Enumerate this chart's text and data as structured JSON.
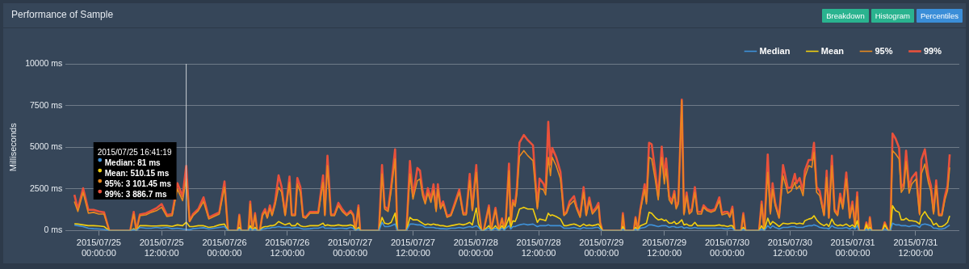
{
  "chart_data": {
    "type": "line",
    "title": "Performance of Sample",
    "ylabel": "Milliseconds",
    "annotations": [
      "Breakdown",
      "Histogram",
      "Percentiles",
      "2015/07/25 16:41:19",
      "Median: 81 ms",
      "Mean: 510.15 ms",
      "95%: 3 101.45 ms",
      "99%: 3 886.7 ms"
    ],
    "ref_lines": [
      {
        "axis": "x",
        "value": "2015-07-25T16:41:19",
        "color": "#c8cdd3"
      }
    ],
    "legend": "top right",
    "grid": "y",
    "xlim": [
      "2015-07-24T17:40",
      "2015-07-31T20:20"
    ],
    "xticks": [
      {
        "value": "2015-07-25T00:00",
        "label": "2015/07/25 00:00:00"
      },
      {
        "value": "2015-07-25T12:00",
        "label": "2015/07/25 12:00:00"
      },
      {
        "value": "2015-07-26T00:00",
        "label": "2015/07/26 00:00:00"
      },
      {
        "value": "2015-07-26T12:00",
        "label": "2015/07/26 12:00:00"
      },
      {
        "value": "2015-07-27T00:00",
        "label": "2015/07/27 00:00:00"
      },
      {
        "value": "2015-07-27T12:00",
        "label": "2015/07/27 12:00:00"
      },
      {
        "value": "2015-07-28T00:00",
        "label": "2015/07/28 00:00:00"
      },
      {
        "value": "2015-07-28T12:00",
        "label": "2015/07/28 12:00:00"
      },
      {
        "value": "2015-07-29T00:00",
        "label": "2015/07/29 00:00:00"
      },
      {
        "value": "2015-07-29T12:00",
        "label": "2015/07/29 12:00:00"
      },
      {
        "value": "2015-07-30T00:00",
        "label": "2015/07/30 00:00:00"
      },
      {
        "value": "2015-07-30T12:00",
        "label": "2015/07/30 12:00:00"
      },
      {
        "value": "2015-07-31T00:00",
        "label": "2015/07/31 00:00:00"
      },
      {
        "value": "2015-07-31T12:00",
        "label": "2015/07/31 12:00:00"
      }
    ],
    "ylim": [
      0,
      10000
    ],
    "yticks": [
      {
        "value": 0,
        "label": "0 ms"
      },
      {
        "value": 2500,
        "label": "2500 ms"
      },
      {
        "value": 5000,
        "label": "5000 ms"
      },
      {
        "value": 7500,
        "label": "7500 ms"
      },
      {
        "value": 10000,
        "label": "10000 ms"
      }
    ],
    "x": [
      "2015-07-24T19:20",
      "2015-07-24T20:00",
      "2015-07-24T21:00",
      "2015-07-24T22:00",
      "2015-07-24T23:00",
      "2015-07-25T00:00",
      "2015-07-25T01:00",
      "2015-07-25T02:00",
      "2015-07-25T06:00",
      "2015-07-25T06:40",
      "2015-07-25T07:10",
      "2015-07-25T07:50",
      "2015-07-25T09:00",
      "2015-07-25T10:00",
      "2015-07-25T11:00",
      "2015-07-25T12:00",
      "2015-07-25T13:00",
      "2015-07-25T14:00",
      "2015-07-25T15:00",
      "2015-07-25T16:00",
      "2015-07-25T16:41:19",
      "2015-07-25T17:20",
      "2015-07-25T18:00",
      "2015-07-25T19:00",
      "2015-07-25T20:00",
      "2015-07-25T21:00",
      "2015-07-25T22:00",
      "2015-07-25T23:00",
      "2015-07-26T00:00",
      "2015-07-26T00:40",
      "2015-07-26T02:30",
      "2015-07-26T02:50",
      "2015-07-26T03:10",
      "2015-07-26T04:35",
      "2015-07-26T04:55",
      "2015-07-26T05:20",
      "2015-07-26T05:50",
      "2015-07-26T06:15",
      "2015-07-26T06:45",
      "2015-07-26T07:15",
      "2015-07-26T07:45",
      "2015-07-26T08:10",
      "2015-07-26T08:40",
      "2015-07-26T09:05",
      "2015-07-26T09:40",
      "2015-07-26T10:20",
      "2015-07-26T10:55",
      "2015-07-26T11:35",
      "2015-07-26T12:25",
      "2015-07-26T12:50",
      "2015-07-26T13:30",
      "2015-07-26T13:55",
      "2015-07-26T14:30",
      "2015-07-26T15:00",
      "2015-07-26T15:30",
      "2015-07-26T16:20",
      "2015-07-26T17:05",
      "2015-07-26T17:55",
      "2015-07-26T18:50",
      "2015-07-26T19:10",
      "2015-07-26T19:40",
      "2015-07-26T20:20",
      "2015-07-26T21:00",
      "2015-07-26T21:45",
      "2015-07-26T22:30",
      "2015-07-26T23:20",
      "2015-07-27T00:05",
      "2015-07-27T00:35",
      "2015-07-27T01:00",
      "2015-07-27T01:35",
      "2015-07-27T01:55",
      "2015-07-27T05:30",
      "2015-07-27T06:05",
      "2015-07-27T06:35",
      "2015-07-27T07:15",
      "2015-07-27T07:50",
      "2015-07-27T08:35",
      "2015-07-27T09:00",
      "2015-07-27T10:45",
      "2015-07-27T11:25",
      "2015-07-27T12:00",
      "2015-07-27T12:50",
      "2015-07-27T13:20",
      "2015-07-27T13:50",
      "2015-07-27T14:20",
      "2015-07-27T14:50",
      "2015-07-27T15:25",
      "2015-07-27T15:55",
      "2015-07-27T16:25",
      "2015-07-27T16:45",
      "2015-07-27T17:15",
      "2015-07-27T17:45",
      "2015-07-27T18:30",
      "2015-07-27T19:15",
      "2015-07-27T20:05",
      "2015-07-27T20:50",
      "2015-07-27T21:35",
      "2015-07-27T22:10",
      "2015-07-27T22:50",
      "2015-07-27T23:20",
      "2015-07-28T00:05",
      "2015-07-28T00:30",
      "2015-07-28T01:05",
      "2015-07-28T01:30",
      "2015-07-28T02:30",
      "2015-07-28T02:55",
      "2015-07-28T03:45",
      "2015-07-28T04:25",
      "2015-07-28T05:00",
      "2015-07-28T05:25",
      "2015-07-28T05:45",
      "2015-07-28T06:20",
      "2015-07-28T06:40",
      "2015-07-28T07:05",
      "2015-07-28T07:30",
      "2015-07-28T07:50",
      "2015-07-28T08:20",
      "2015-07-28T09:10",
      "2015-07-28T09:55",
      "2015-07-28T10:55",
      "2015-07-28T11:45",
      "2015-07-28T12:10",
      "2015-07-28T12:55",
      "2015-07-28T13:20",
      "2015-07-28T13:50",
      "2015-07-28T14:15",
      "2015-07-28T14:35",
      "2015-07-28T15:20",
      "2015-07-28T16:10",
      "2015-07-28T16:50",
      "2015-07-28T17:20",
      "2015-07-28T17:55",
      "2015-07-28T18:45",
      "2015-07-28T19:15",
      "2015-07-28T19:55",
      "2015-07-28T20:35",
      "2015-07-28T21:05",
      "2015-07-28T21:40",
      "2015-07-28T22:15",
      "2015-07-28T22:55",
      "2015-07-28T23:25",
      "2015-07-28T23:45",
      "2015-07-29T00:10",
      "2015-07-29T03:50",
      "2015-07-29T04:05",
      "2015-07-29T04:25",
      "2015-07-29T06:10",
      "2015-07-29T06:30",
      "2015-07-29T06:55",
      "2015-07-29T07:25",
      "2015-07-29T08:15",
      "2015-07-29T08:35",
      "2015-07-29T09:05",
      "2015-07-29T09:35",
      "2015-07-29T10:15",
      "2015-07-29T10:50",
      "2015-07-29T11:30",
      "2015-07-29T12:00",
      "2015-07-29T12:20",
      "2015-07-29T12:55",
      "2015-07-29T13:25",
      "2015-07-29T13:55",
      "2015-07-29T14:15",
      "2015-07-29T14:40",
      "2015-07-29T15:20",
      "2015-07-29T15:45",
      "2015-07-29T16:15",
      "2015-07-29T16:45",
      "2015-07-29T17:15",
      "2015-07-29T17:50",
      "2015-07-29T18:20",
      "2015-07-29T19:05",
      "2015-07-29T19:30",
      "2015-07-29T20:10",
      "2015-07-29T20:55",
      "2015-07-29T21:40",
      "2015-07-29T22:30",
      "2015-07-29T23:00",
      "2015-07-29T23:30",
      "2015-07-30T00:05",
      "2015-07-30T00:30",
      "2015-07-30T01:00",
      "2015-07-30T01:25",
      "2015-07-30T02:40",
      "2015-07-30T03:05",
      "2015-07-30T03:30",
      "2015-07-30T06:05",
      "2015-07-30T06:35",
      "2015-07-30T07:05",
      "2015-07-30T07:45",
      "2015-07-30T08:15",
      "2015-07-30T08:40",
      "2015-07-30T09:10",
      "2015-07-30T09:55",
      "2015-07-30T10:40",
      "2015-07-30T11:35",
      "2015-07-30T12:15",
      "2015-07-30T12:55",
      "2015-07-30T13:15",
      "2015-07-30T13:50",
      "2015-07-30T14:30",
      "2015-07-30T14:50",
      "2015-07-30T15:35",
      "2015-07-30T16:10",
      "2015-07-30T16:35",
      "2015-07-30T17:05",
      "2015-07-30T17:40",
      "2015-07-30T18:30",
      "2015-07-30T19:00",
      "2015-07-30T19:25",
      "2015-07-30T20:00",
      "2015-07-30T20:30",
      "2015-07-30T21:05",
      "2015-07-30T21:35",
      "2015-07-30T22:05",
      "2015-07-30T22:45",
      "2015-07-30T23:25",
      "2015-07-30T23:55",
      "2015-07-31T00:25",
      "2015-07-31T00:50",
      "2015-07-31T01:10",
      "2015-07-31T02:15",
      "2015-07-31T02:35",
      "2015-07-31T03:00",
      "2015-07-31T03:15",
      "2015-07-31T03:35",
      "2015-07-31T05:40",
      "2015-07-31T06:05",
      "2015-07-31T06:45",
      "2015-07-31T07:10",
      "2015-07-31T07:35",
      "2015-07-31T08:10",
      "2015-07-31T08:50",
      "2015-07-31T09:15",
      "2015-07-31T09:45",
      "2015-07-31T10:10",
      "2015-07-31T10:45",
      "2015-07-31T11:15",
      "2015-07-31T12:05",
      "2015-07-31T12:45",
      "2015-07-31T13:05",
      "2015-07-31T13:45",
      "2015-07-31T14:25",
      "2015-07-31T14:55",
      "2015-07-31T15:25",
      "2015-07-31T15:55",
      "2015-07-31T16:25",
      "2015-07-31T17:00",
      "2015-07-31T17:35",
      "2015-07-31T18:05",
      "2015-07-31T18:30"
    ],
    "series": [
      {
        "name": "Median",
        "color": "#3f91d8",
        "values": [
          330,
          300,
          250,
          150,
          120,
          100,
          80,
          0,
          0,
          60,
          0,
          200,
          150,
          150,
          200,
          150,
          200,
          120,
          150,
          100,
          81,
          60,
          120,
          150,
          180,
          100,
          150,
          200,
          250,
          0,
          0,
          100,
          0,
          0,
          150,
          0,
          100,
          0,
          0,
          100,
          120,
          150,
          150,
          200,
          200,
          250,
          200,
          200,
          200,
          150,
          180,
          200,
          150,
          100,
          100,
          120,
          150,
          150,
          250,
          150,
          150,
          150,
          120,
          150,
          150,
          120,
          200,
          150,
          0,
          100,
          0,
          0,
          500,
          250,
          250,
          300,
          400,
          0,
          0,
          400,
          400,
          350,
          350,
          300,
          200,
          200,
          200,
          200,
          150,
          150,
          120,
          120,
          100,
          150,
          150,
          200,
          150,
          200,
          250,
          200,
          300,
          200,
          0,
          0,
          150,
          0,
          150,
          0,
          150,
          30,
          150,
          300,
          100,
          250,
          250,
          300,
          350,
          400,
          350,
          400,
          250,
          300,
          300,
          300,
          350,
          300,
          300,
          300,
          300,
          150,
          150,
          150,
          200,
          150,
          100,
          200,
          150,
          150,
          150,
          200,
          200,
          100,
          0,
          0,
          100,
          0,
          0,
          100,
          0,
          150,
          200,
          250,
          350,
          350,
          300,
          250,
          300,
          300,
          300,
          200,
          250,
          250,
          200,
          200,
          250,
          150,
          200,
          150,
          150,
          200,
          150,
          150,
          150,
          150,
          150,
          150,
          150,
          150,
          120,
          100,
          150,
          150,
          0,
          0,
          100,
          0,
          0,
          100,
          0,
          300,
          150,
          300,
          200,
          100,
          200,
          200,
          250,
          250,
          200,
          200,
          200,
          250,
          300,
          300,
          350,
          300,
          200,
          150,
          150,
          100,
          300,
          200,
          150,
          150,
          150,
          200,
          100,
          200,
          100,
          300,
          0,
          0,
          100,
          0,
          100,
          0,
          0,
          100,
          0,
          0,
          450,
          350,
          350,
          300,
          300,
          300,
          250,
          300,
          300,
          200,
          350,
          400,
          350,
          300,
          150,
          150,
          100,
          100,
          150,
          250,
          340
        ]
      },
      {
        "name": "Mean",
        "color": "#f2cf0f",
        "values": [
          420,
          400,
          350,
          300,
          300,
          280,
          250,
          0,
          0,
          120,
          0,
          300,
          300,
          280,
          280,
          300,
          300,
          260,
          350,
          300,
          510.15,
          250,
          250,
          300,
          300,
          200,
          250,
          350,
          400,
          0,
          0,
          200,
          0,
          0,
          300,
          0,
          200,
          0,
          0,
          200,
          250,
          250,
          300,
          300,
          350,
          550,
          450,
          350,
          450,
          300,
          300,
          450,
          300,
          250,
          250,
          300,
          300,
          300,
          450,
          300,
          350,
          300,
          300,
          350,
          300,
          300,
          350,
          300,
          0,
          200,
          0,
          0,
          800,
          450,
          400,
          500,
          1050,
          0,
          0,
          800,
          650,
          650,
          550,
          450,
          350,
          400,
          350,
          400,
          350,
          350,
          300,
          300,
          250,
          300,
          350,
          400,
          350,
          400,
          500,
          350,
          1360,
          400,
          0,
          0,
          300,
          0,
          300,
          0,
          300,
          50,
          300,
          800,
          200,
          600,
          550,
          800,
          1300,
          1400,
          1300,
          1300,
          500,
          700,
          650,
          600,
          1050,
          900,
          950,
          850,
          700,
          300,
          300,
          350,
          400,
          350,
          250,
          400,
          300,
          350,
          300,
          350,
          400,
          250,
          0,
          0,
          250,
          0,
          0,
          200,
          0,
          300,
          400,
          450,
          1100,
          1050,
          800,
          650,
          700,
          600,
          650,
          450,
          450,
          550,
          400,
          450,
          650,
          350,
          400,
          300,
          300,
          500,
          300,
          300,
          300,
          300,
          300,
          300,
          350,
          300,
          300,
          250,
          300,
          300,
          0,
          0,
          200,
          0,
          0,
          300,
          0,
          750,
          350,
          550,
          450,
          250,
          450,
          400,
          450,
          450,
          400,
          450,
          400,
          600,
          700,
          750,
          900,
          650,
          450,
          300,
          400,
          250,
          700,
          400,
          300,
          350,
          300,
          400,
          250,
          350,
          200,
          600,
          0,
          0,
          350,
          0,
          200,
          0,
          0,
          350,
          0,
          0,
          1500,
          1200,
          1100,
          650,
          650,
          750,
          600,
          600,
          550,
          400,
          850,
          1150,
          800,
          650,
          350,
          450,
          250,
          250,
          350,
          500,
          890
        ]
      },
      {
        "name": "95%",
        "color": "#e8891f",
        "values": [
          1750,
          1150,
          2300,
          1050,
          1100,
          1000,
          1000,
          0,
          0,
          1000,
          0,
          900,
          950,
          1100,
          1200,
          1400,
          850,
          900,
          2500,
          1800,
          3101.45,
          550,
          900,
          1200,
          1750,
          700,
          850,
          1000,
          2600,
          0,
          0,
          900,
          0,
          0,
          1600,
          0,
          950,
          0,
          0,
          900,
          1150,
          750,
          1350,
          900,
          1550,
          2600,
          2300,
          900,
          2900,
          900,
          900,
          2800,
          2300,
          800,
          750,
          1050,
          1050,
          1050,
          2900,
          900,
          3900,
          900,
          900,
          1500,
          1150,
          900,
          1100,
          900,
          0,
          1400,
          0,
          0,
          3400,
          1300,
          1150,
          2400,
          4300,
          0,
          0,
          3400,
          1900,
          3000,
          3100,
          2100,
          1600,
          2250,
          1700,
          2400,
          1150,
          2500,
          1300,
          1600,
          800,
          900,
          1600,
          2300,
          950,
          950,
          3000,
          1200,
          3500,
          1350,
          0,
          0,
          1400,
          0,
          1250,
          0,
          700,
          100,
          700,
          3600,
          350,
          1700,
          1450,
          2200,
          4450,
          4800,
          4500,
          4200,
          1300,
          2550,
          2450,
          2150,
          4400,
          3300,
          4400,
          3900,
          3100,
          900,
          1050,
          1550,
          1800,
          1300,
          800,
          2300,
          900,
          1800,
          1000,
          1250,
          1500,
          450,
          0,
          0,
          950,
          0,
          0,
          750,
          0,
          1200,
          2500,
          1600,
          4400,
          4300,
          3100,
          1850,
          4400,
          2800,
          3700,
          1850,
          1600,
          2200,
          1300,
          1600,
          7800,
          950,
          2100,
          1000,
          1150,
          2300,
          1000,
          1000,
          1400,
          1200,
          1100,
          1200,
          1800,
          950,
          1000,
          1050,
          800,
          1300,
          0,
          0,
          950,
          0,
          0,
          1600,
          0,
          3500,
          1000,
          2500,
          1500,
          750,
          3300,
          2250,
          2400,
          2900,
          2500,
          2700,
          2100,
          3200,
          3900,
          3800,
          4700,
          2300,
          2100,
          900,
          3200,
          750,
          3900,
          1150,
          900,
          2000,
          1300,
          3100,
          750,
          1550,
          300,
          2050,
          0,
          0,
          450,
          0,
          750,
          0,
          0,
          450,
          0,
          0,
          4800,
          4600,
          4300,
          2300,
          2550,
          4150,
          2250,
          2800,
          3100,
          950,
          3400,
          4000,
          2900,
          2350,
          1000,
          2700,
          900,
          900,
          1850,
          2400,
          3790
        ]
      },
      {
        "name": "99%",
        "color": "#e9513b",
        "values": [
          2150,
          1300,
          2540,
          1250,
          1250,
          1150,
          1100,
          0,
          0,
          1130,
          0,
          970,
          1050,
          1200,
          1350,
          1600,
          950,
          1000,
          2850,
          2050,
          3886.7,
          580,
          1000,
          1300,
          2000,
          800,
          950,
          1100,
          2950,
          0,
          0,
          960,
          0,
          0,
          1750,
          0,
          1050,
          0,
          0,
          1000,
          1300,
          820,
          1520,
          970,
          1750,
          3320,
          2610,
          970,
          3240,
          970,
          970,
          3160,
          2610,
          890,
          810,
          1130,
          1130,
          1130,
          3320,
          970,
          4490,
          970,
          970,
          1670,
          1280,
          970,
          1200,
          970,
          0,
          1520,
          0,
          0,
          3940,
          1440,
          1280,
          2690,
          4880,
          0,
          0,
          4180,
          2070,
          3760,
          3600,
          2380,
          1750,
          2550,
          1920,
          2780,
          1290,
          2780,
          1440,
          1750,
          890,
          970,
          1750,
          2470,
          1050,
          1050,
          3400,
          1290,
          3940,
          1440,
          0,
          0,
          1520,
          0,
          1370,
          0,
          740,
          100,
          740,
          4020,
          400,
          1830,
          1600,
          2540,
          5270,
          5740,
          5430,
          5120,
          1440,
          3130,
          2820,
          2430,
          6530,
          3960,
          4960,
          4410,
          3520,
          970,
          1130,
          1750,
          2070,
          1440,
          890,
          2610,
          970,
          1990,
          1130,
          1370,
          1670,
          500,
          0,
          0,
          1050,
          0,
          0,
          810,
          0,
          1290,
          2790,
          1750,
          5270,
          5180,
          3600,
          2070,
          5040,
          3170,
          4330,
          2070,
          1750,
          2380,
          1440,
          1750,
          7860,
          1050,
          2290,
          1130,
          1290,
          2610,
          1130,
          1130,
          1520,
          1290,
          1200,
          1290,
          2000,
          1050,
          1130,
          1130,
          890,
          1440,
          0,
          0,
          1050,
          0,
          0,
          1750,
          0,
          4570,
          1130,
          2850,
          1670,
          810,
          3940,
          2540,
          2610,
          3400,
          2850,
          3160,
          2380,
          3600,
          4240,
          4240,
          5270,
          2610,
          2380,
          970,
          3600,
          810,
          4490,
          1290,
          970,
          2220,
          1440,
          3490,
          810,
          1750,
          350,
          2300,
          0,
          0,
          500,
          0,
          810,
          0,
          0,
          500,
          0,
          0,
          5820,
          5510,
          4960,
          2540,
          2850,
          4800,
          2610,
          3160,
          3490,
          1050,
          4240,
          4880,
          3290,
          2690,
          1130,
          3010,
          970,
          970,
          2070,
          2690,
          4570
        ]
      }
    ]
  }
}
